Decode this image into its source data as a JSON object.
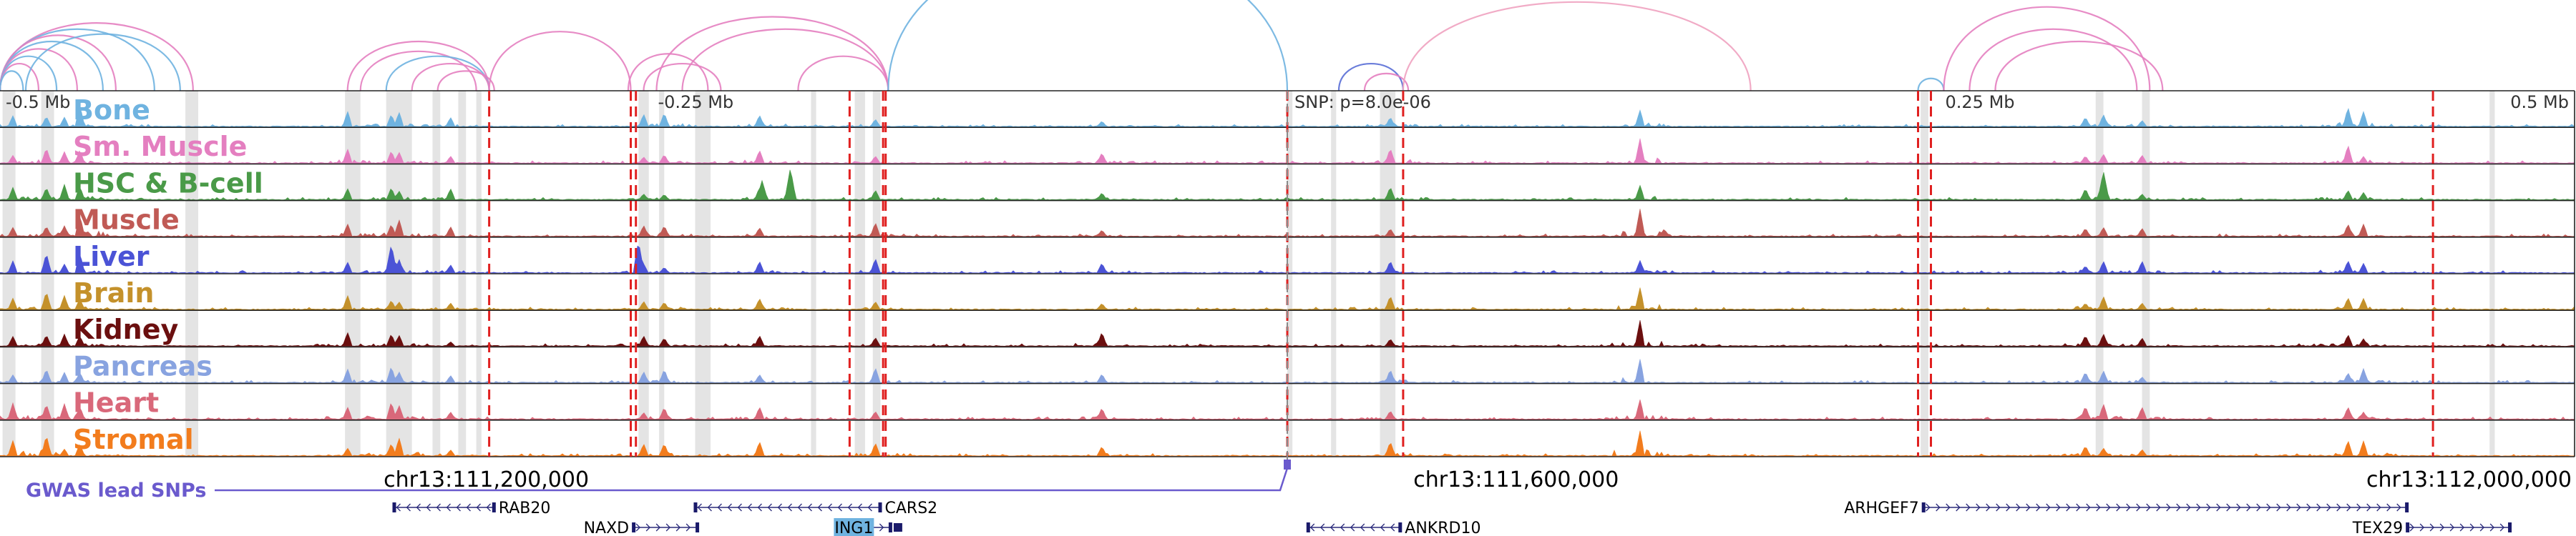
{
  "chart_data": {
    "type": "genome-browser",
    "chromosome": "chr13",
    "region": [
      111000000,
      112000000
    ],
    "offset_ticks": [
      {
        "pos": 111000000,
        "label": "-0.5 Mb"
      },
      {
        "pos": 111250000,
        "label": "-0.25 Mb"
      },
      {
        "pos": 111750000,
        "label": "0.25 Mb"
      },
      {
        "pos": 112000000,
        "label": "0.5 Mb"
      }
    ],
    "snp": {
      "pos": 111500000,
      "label": "SNP: p=8.0e-06"
    },
    "coordinate_labels": [
      {
        "pos": 111200000,
        "label": "chr13:111,200,000"
      },
      {
        "pos": 111600000,
        "label": "chr13:111,600,000"
      },
      {
        "pos": 112000000,
        "label": "chr13:112,000,000"
      }
    ],
    "tracks": [
      {
        "name": "Bone",
        "color": "#6fb3e0"
      },
      {
        "name": "Sm. Muscle",
        "color": "#e47fc0"
      },
      {
        "name": "HSC & B-cell",
        "color": "#4a9a48"
      },
      {
        "name": "Muscle",
        "color": "#c05a55"
      },
      {
        "name": "Liver",
        "color": "#4b53d6"
      },
      {
        "name": "Brain",
        "color": "#c4912b"
      },
      {
        "name": "Kidney",
        "color": "#6b0f0f"
      },
      {
        "name": "Pancreas",
        "color": "#88a3e0"
      },
      {
        "name": "Heart",
        "color": "#d9687a"
      },
      {
        "name": "Stromal",
        "color": "#f27c1d"
      }
    ],
    "peaks": [
      {
        "pos": 111005000,
        "height": 0.6
      },
      {
        "pos": 111018000,
        "height": 0.9
      },
      {
        "pos": 111025000,
        "height": 0.55
      },
      {
        "pos": 111031000,
        "height": 0.8
      },
      {
        "pos": 111135000,
        "height": 0.55
      },
      {
        "pos": 111152000,
        "height": 0.7
      },
      {
        "pos": 111155000,
        "height": 0.65
      },
      {
        "pos": 111175000,
        "height": 0.4
      },
      {
        "pos": 111250000,
        "height": 0.45
      },
      {
        "pos": 111258000,
        "height": 0.5
      },
      {
        "pos": 111295000,
        "height": 0.55
      },
      {
        "pos": 111340000,
        "height": 0.6
      },
      {
        "pos": 111428000,
        "height": 0.5
      },
      {
        "pos": 111540000,
        "height": 0.6
      },
      {
        "pos": 111637000,
        "height": 1.0
      },
      {
        "pos": 111810000,
        "height": 0.5
      },
      {
        "pos": 111817000,
        "height": 0.55
      },
      {
        "pos": 111832000,
        "height": 0.45
      },
      {
        "pos": 111912000,
        "height": 0.7
      },
      {
        "pos": 111918000,
        "height": 0.55
      }
    ],
    "special_peaks": [
      {
        "track": "HSC & B-cell",
        "pos": 111296000,
        "height": 0.6
      },
      {
        "track": "HSC & B-cell",
        "pos": 111307000,
        "height": 1.0
      },
      {
        "track": "HSC & B-cell",
        "pos": 111817000,
        "height": 0.9
      },
      {
        "track": "Liver",
        "pos": 111152000,
        "height": 0.9
      },
      {
        "track": "Liver",
        "pos": 111248000,
        "height": 1.0
      }
    ],
    "gray_bands": [
      [
        111001000,
        111006000
      ],
      [
        111016000,
        111021000
      ],
      [
        111072000,
        111077000
      ],
      [
        111134000,
        111140000
      ],
      [
        111150000,
        111160000
      ],
      [
        111168000,
        111171000
      ],
      [
        111178000,
        111181000
      ],
      [
        111185000,
        111187000
      ],
      [
        111248000,
        111252000
      ],
      [
        111256000,
        111258000
      ],
      [
        111270000,
        111276000
      ],
      [
        111315000,
        111317000
      ],
      [
        111332000,
        111336000
      ],
      [
        111339000,
        111342000
      ],
      [
        111500000,
        111502000
      ],
      [
        111517000,
        111519000
      ],
      [
        111536000,
        111542000
      ],
      [
        111746000,
        111749000
      ],
      [
        111814000,
        111817000
      ],
      [
        111832000,
        111835000
      ],
      [
        111967000,
        111969000
      ]
    ],
    "red_lines": [
      111190000,
      111245000,
      111247000,
      111330000,
      111343000,
      111344000,
      111500000,
      111545000,
      111745000,
      111750000,
      111945000
    ],
    "arcs": [
      {
        "start": 111000000,
        "end": 111075000,
        "color": "#e47fc0",
        "h": 55
      },
      {
        "start": 111000000,
        "end": 111060000,
        "color": "#6fb3e0",
        "h": 50
      },
      {
        "start": 111000000,
        "end": 111045000,
        "color": "#e47fc0",
        "h": 45
      },
      {
        "start": 111000000,
        "end": 111040000,
        "color": "#6fb3e0",
        "h": 40
      },
      {
        "start": 111000000,
        "end": 111030000,
        "color": "#e47fc0",
        "h": 34
      },
      {
        "start": 111000000,
        "end": 111022000,
        "color": "#6fb3e0",
        "h": 28
      },
      {
        "start": 111000000,
        "end": 111015000,
        "color": "#e47fc0",
        "h": 22
      },
      {
        "start": 111000000,
        "end": 111009000,
        "color": "#6fb3e0",
        "h": 16
      },
      {
        "start": 111010000,
        "end": 111070000,
        "color": "#6fb3e0",
        "h": 46
      },
      {
        "start": 111135000,
        "end": 111190000,
        "color": "#e47fc0",
        "h": 40
      },
      {
        "start": 111140000,
        "end": 111185000,
        "color": "#e47fc0",
        "h": 32
      },
      {
        "start": 111150000,
        "end": 111190000,
        "color": "#6fb3e0",
        "h": 28
      },
      {
        "start": 111160000,
        "end": 111190000,
        "color": "#e47fc0",
        "h": 22
      },
      {
        "start": 111170000,
        "end": 111192000,
        "color": "#e47fc0",
        "h": 16
      },
      {
        "start": 111190000,
        "end": 111245000,
        "color": "#e47fc0",
        "h": 48
      },
      {
        "start": 111244000,
        "end": 111275000,
        "color": "#e47fc0",
        "h": 30
      },
      {
        "start": 111250000,
        "end": 111280000,
        "color": "#e47fc0",
        "h": 22
      },
      {
        "start": 111255000,
        "end": 111345000,
        "color": "#e47fc0",
        "h": 60
      },
      {
        "start": 111265000,
        "end": 111345000,
        "color": "#e47fc0",
        "h": 50
      },
      {
        "start": 111310000,
        "end": 111345000,
        "color": "#e47fc0",
        "h": 28
      },
      {
        "start": 111345000,
        "end": 111500000,
        "color": "#6fb3e0",
        "h": 118
      },
      {
        "start": 111520000,
        "end": 111545000,
        "color": "#5a6fd6",
        "h": 22
      },
      {
        "start": 111530000,
        "end": 111547000,
        "color": "#e47fc0",
        "h": 14
      },
      {
        "start": 111545000,
        "end": 111680000,
        "color": "#f0a2c0",
        "h": 72
      },
      {
        "start": 111745000,
        "end": 111755000,
        "color": "#6fb3e0",
        "h": 10
      },
      {
        "start": 111755000,
        "end": 111835000,
        "color": "#e47fc0",
        "h": 68
      },
      {
        "start": 111765000,
        "end": 111830000,
        "color": "#e47fc0",
        "h": 50
      },
      {
        "start": 111775000,
        "end": 111840000,
        "color": "#e47fc0",
        "h": 40
      }
    ],
    "genes": [
      {
        "name": "RAB20",
        "start": 111153000,
        "end": 111192000,
        "strand": "-",
        "row": 0,
        "label_side": "right"
      },
      {
        "name": "CARS2",
        "start": 111270000,
        "end": 111342000,
        "strand": "-",
        "row": 0,
        "label_side": "right"
      },
      {
        "name": "NAXD",
        "start": 111246000,
        "end": 111271000,
        "strand": "+",
        "row": 1,
        "label_side": "left"
      },
      {
        "name": "ING1",
        "start": 111325000,
        "end": 111346000,
        "strand": "+",
        "row": 1,
        "label_side": "box"
      },
      {
        "name": "ANKRD10",
        "start": 111508000,
        "end": 111544000,
        "strand": "-",
        "row": 1,
        "label_side": "right"
      },
      {
        "name": "ARHGEF7",
        "start": 111747000,
        "end": 111935000,
        "strand": "+",
        "row": 0,
        "label_side": "left"
      },
      {
        "name": "TEX29",
        "start": 111935000,
        "end": 111975000,
        "strand": "+",
        "row": 1,
        "label_side": "left"
      }
    ],
    "gwas": {
      "label": "GWAS lead SNPs",
      "pos": 111500000,
      "color": "#6a5acd"
    }
  }
}
